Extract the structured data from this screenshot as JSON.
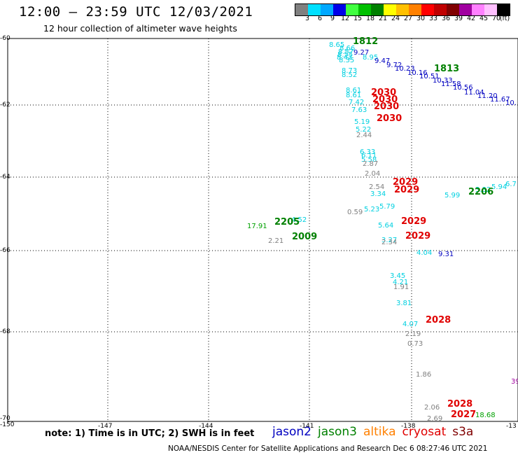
{
  "header": {
    "title": "12:00 – 23:59 UTC 12/03/2021",
    "subtitle": "12 hour collection of altimeter wave heights"
  },
  "colorbar": {
    "colors": [
      "#808080",
      "#00e0ff",
      "#00a8ff",
      "#0000e8",
      "#40ff40",
      "#00c000",
      "#008000",
      "#ffff00",
      "#ffc000",
      "#ff8000",
      "#ff0000",
      "#c00000",
      "#800000",
      "#a000a0",
      "#ff80ff",
      "#ffc0ff",
      "#000000"
    ],
    "ticks": [
      "3",
      "6",
      "9",
      "12",
      "15",
      "18",
      "21",
      "24",
      "27",
      "30",
      "33",
      "36",
      "39",
      "42",
      "45",
      "70"
    ],
    "unit": "(ft)"
  },
  "axes": {
    "y_ticks": [
      "-60",
      "-62",
      "-64",
      "-66",
      "-68",
      "-70"
    ],
    "x_ticks": [
      "-150",
      "-147",
      "-144",
      "-141",
      "-138",
      "-13"
    ]
  },
  "observations": [
    {
      "v": "8.65",
      "c": "#00d0e0"
    },
    {
      "v": "8.66",
      "c": "#00d0e0"
    },
    {
      "v": "8.57",
      "c": "#00d0e0"
    },
    {
      "v": "8.55",
      "c": "#00d0e0"
    },
    {
      "v": "8.42",
      "c": "#00d0e0"
    },
    {
      "v": "8.35",
      "c": "#00d0e0"
    },
    {
      "v": "9.27",
      "c": "#0000c0"
    },
    {
      "v": "8.95",
      "c": "#00d0e0"
    },
    {
      "v": "9.47",
      "c": "#0000c0"
    },
    {
      "v": "9.72",
      "c": "#0000c0"
    },
    {
      "v": "10.23",
      "c": "#0000c0"
    },
    {
      "v": "10.16",
      "c": "#0000c0"
    },
    {
      "v": "10.51",
      "c": "#0000c0"
    },
    {
      "v": "10.33",
      "c": "#0000c0"
    },
    {
      "v": "11.58",
      "c": "#0000c0"
    },
    {
      "v": "10.56",
      "c": "#0000c0"
    },
    {
      "v": "11.04",
      "c": "#0000c0"
    },
    {
      "v": "11.20",
      "c": "#0000c0"
    },
    {
      "v": "11.67",
      "c": "#0000c0"
    },
    {
      "v": "10.",
      "c": "#0000c0"
    },
    {
      "v": "8.73",
      "c": "#00d0e0"
    },
    {
      "v": "8.52",
      "c": "#00d0e0"
    },
    {
      "v": "8.61",
      "c": "#00d0e0"
    },
    {
      "v": "8.61",
      "c": "#00d0e0"
    },
    {
      "v": "7.42",
      "c": "#00d0e0"
    },
    {
      "v": "7.63",
      "c": "#00d0e0"
    },
    {
      "v": "5.19",
      "c": "#00d0e0"
    },
    {
      "v": "5.22",
      "c": "#00d0e0"
    },
    {
      "v": "2.44",
      "c": "#808080"
    },
    {
      "v": "6.33",
      "c": "#00d0e0"
    },
    {
      "v": "6.11",
      "c": "#00d0e0"
    },
    {
      "v": "5.58",
      "c": "#00d0e0"
    },
    {
      "v": "2.87",
      "c": "#808080"
    },
    {
      "v": "2.04",
      "c": "#808080"
    },
    {
      "v": "2.54",
      "c": "#808080"
    },
    {
      "v": "3.34",
      "c": "#00d0e0"
    },
    {
      "v": "5.99",
      "c": "#00d0e0"
    },
    {
      "v": "3.32",
      "c": "#00d0e0"
    },
    {
      "v": "5.94",
      "c": "#00d0e0"
    },
    {
      "v": "6.7",
      "c": "#00d0e0"
    },
    {
      "v": "0.59",
      "c": "#808080"
    },
    {
      "v": "5.23",
      "c": "#00d0e0"
    },
    {
      "v": "5.79",
      "c": "#00d0e0"
    },
    {
      "v": "17.91",
      "c": "#00a000"
    },
    {
      "v": "4.52",
      "c": "#00d0e0"
    },
    {
      "v": "5.64",
      "c": "#00d0e0"
    },
    {
      "v": "2.21",
      "c": "#808080"
    },
    {
      "v": "3.27",
      "c": "#00d0e0"
    },
    {
      "v": "2.34",
      "c": "#808080"
    },
    {
      "v": "4.04",
      "c": "#00d0e0"
    },
    {
      "v": "9.31",
      "c": "#0000c0"
    },
    {
      "v": "3.45",
      "c": "#00d0e0"
    },
    {
      "v": "4.21",
      "c": "#00d0e0"
    },
    {
      "v": "1.91",
      "c": "#808080"
    },
    {
      "v": "3.81",
      "c": "#00d0e0"
    },
    {
      "v": "4.07",
      "c": "#00d0e0"
    },
    {
      "v": "2.19",
      "c": "#808080"
    },
    {
      "v": "0.73",
      "c": "#808080"
    },
    {
      "v": "1.86",
      "c": "#808080"
    },
    {
      "v": "39",
      "c": "#a000a0"
    },
    {
      "v": "2.06",
      "c": "#808080"
    },
    {
      "v": "2.69",
      "c": "#808080"
    },
    {
      "v": "18.68",
      "c": "#00a000"
    }
  ],
  "time_labels": [
    {
      "v": "1812",
      "c": "#008000"
    },
    {
      "v": "1813",
      "c": "#008000"
    },
    {
      "v": "2030",
      "c": "#e00000"
    },
    {
      "v": "2030",
      "c": "#e00000"
    },
    {
      "v": "2030",
      "c": "#e00000"
    },
    {
      "v": "2030",
      "c": "#e00000"
    },
    {
      "v": "2029",
      "c": "#e00000"
    },
    {
      "v": "2029",
      "c": "#e00000"
    },
    {
      "v": "2206",
      "c": "#008000"
    },
    {
      "v": "2205",
      "c": "#008000"
    },
    {
      "v": "2029",
      "c": "#e00000"
    },
    {
      "v": "2009",
      "c": "#008000"
    },
    {
      "v": "2029",
      "c": "#e00000"
    },
    {
      "v": "2028",
      "c": "#e00000"
    },
    {
      "v": "2028",
      "c": "#e00000"
    },
    {
      "v": "2027",
      "c": "#e00000"
    }
  ],
  "footer": {
    "note": "note: 1) Time is in UTC; 2) SWH is in feet",
    "legend": [
      {
        "name": "jason2",
        "color": "#0000c0"
      },
      {
        "name": "jason3",
        "color": "#008000"
      },
      {
        "name": "altika",
        "color": "#ff8000"
      },
      {
        "name": "cryosat",
        "color": "#e00000"
      },
      {
        "name": "s3a",
        "color": "#800000"
      }
    ],
    "credit": "NOAA/NESDIS Center for Satellite Applications and Research    Dec  6 08:27:46 UTC 2021"
  }
}
